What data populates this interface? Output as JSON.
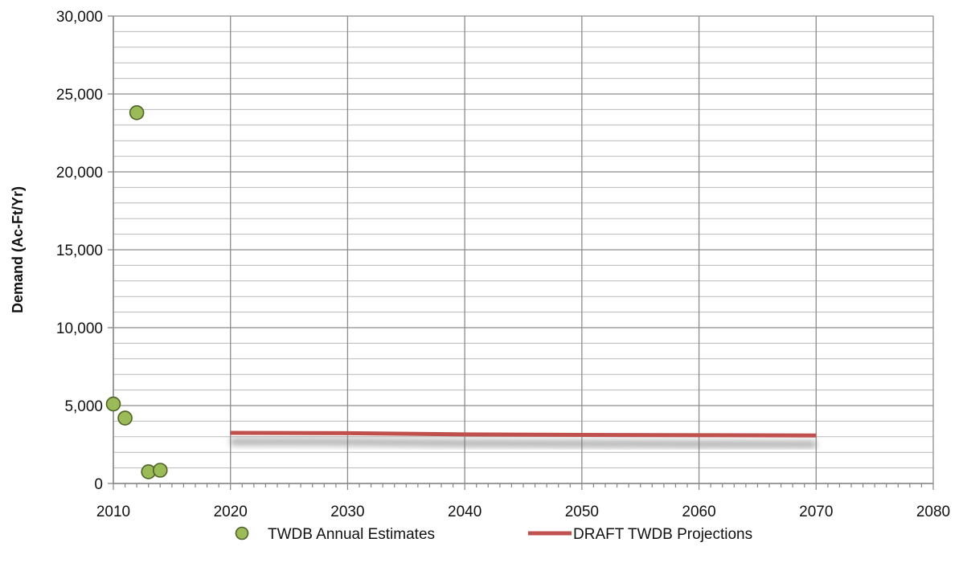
{
  "chart_data": {
    "type": "scatter",
    "ylabel": "Demand (Ac-Ft/Yr)",
    "xlabel": "",
    "xlim": [
      2010,
      2080
    ],
    "ylim": [
      0,
      30000
    ],
    "x_ticks": [
      2010,
      2020,
      2030,
      2040,
      2050,
      2060,
      2070,
      2080
    ],
    "x_tick_labels": [
      "2010",
      "2020",
      "2030",
      "2040",
      "2050",
      "2060",
      "2070",
      "2080"
    ],
    "y_ticks": [
      0,
      5000,
      10000,
      15000,
      20000,
      25000,
      30000
    ],
    "y_tick_labels": [
      "0",
      "5,000",
      "10,000",
      "15,000",
      "20,000",
      "25,000",
      "30,000"
    ],
    "grid": true,
    "legend_position": "bottom",
    "series": [
      {
        "name": "TWDB Annual Estimates",
        "kind": "scatter",
        "color": "#9BBB59",
        "edge_color": "#4F6228",
        "x": [
          2010,
          2011,
          2012,
          2013,
          2014
        ],
        "y": [
          5100,
          4200,
          23800,
          750,
          850
        ]
      },
      {
        "name": "DRAFT TWDB Projections",
        "kind": "line",
        "color": "#C0504D",
        "x": [
          2020,
          2030,
          2040,
          2050,
          2060,
          2070
        ],
        "y": [
          3250,
          3230,
          3150,
          3120,
          3100,
          3080
        ]
      }
    ]
  }
}
